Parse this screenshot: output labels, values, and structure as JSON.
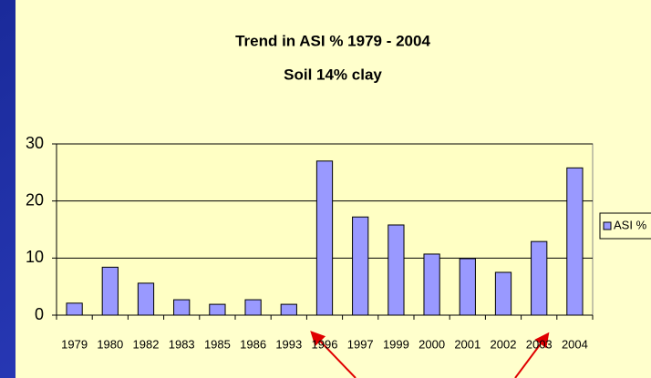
{
  "chart_data": {
    "type": "bar",
    "title": "Trend in ASI % 1979 - 2004",
    "subtitle": "Soil 14% clay",
    "categories": [
      "1979",
      "1980",
      "1982",
      "1983",
      "1985",
      "1986",
      "1993",
      "1996",
      "1997",
      "1999",
      "2000",
      "2001",
      "2002",
      "2003",
      "2004"
    ],
    "series": [
      {
        "name": "ASI %",
        "color": "#9999ff",
        "values": [
          2.1,
          8.4,
          5.6,
          2.7,
          1.9,
          2.7,
          1.9,
          27,
          17.2,
          15.8,
          10.7,
          9.9,
          7.5,
          12.9,
          25.8
        ]
      }
    ],
    "ylim": [
      0,
      30
    ],
    "yticks": [
      0,
      10,
      20,
      30
    ],
    "grid": true,
    "legend": "right"
  }
}
